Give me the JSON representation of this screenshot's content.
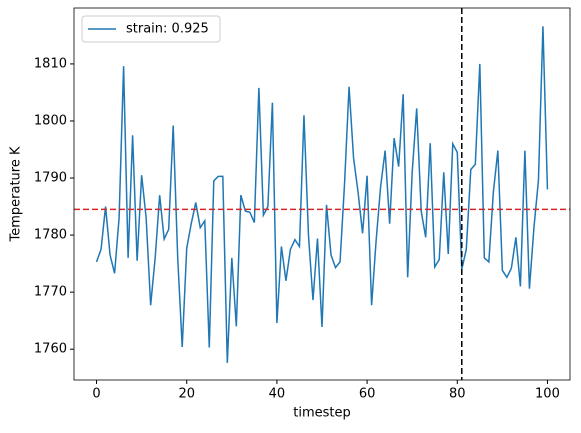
{
  "chart_data": {
    "type": "line",
    "x_label": "timestep",
    "y_label": "Temperature K",
    "x": [
      0,
      1,
      2,
      3,
      4,
      5,
      6,
      7,
      8,
      9,
      10,
      11,
      12,
      13,
      14,
      15,
      16,
      17,
      18,
      19,
      20,
      21,
      22,
      23,
      24,
      25,
      26,
      27,
      28,
      29,
      30,
      31,
      32,
      33,
      34,
      35,
      36,
      37,
      38,
      39,
      40,
      41,
      42,
      43,
      44,
      45,
      46,
      47,
      48,
      49,
      50,
      51,
      52,
      53,
      54,
      55,
      56,
      57,
      58,
      59,
      60,
      61,
      62,
      63,
      64,
      65,
      66,
      67,
      68,
      69,
      70,
      71,
      72,
      73,
      74,
      75,
      76,
      77,
      78,
      79,
      80,
      81,
      82,
      83,
      84,
      85,
      86,
      87,
      88,
      89,
      90,
      91,
      92,
      93,
      94,
      95,
      96,
      97,
      98,
      99,
      100
    ],
    "series": [
      {
        "name": "strain: 0.925",
        "color": "#1f77b4",
        "values": [
          1775.3,
          1777.5,
          1785,
          1776.5,
          1773.3,
          1783,
          1809.6,
          1776,
          1797.5,
          1775.5,
          1790.5,
          1783,
          1767.7,
          1776,
          1787,
          1779.3,
          1781,
          1799.2,
          1776,
          1760.4,
          1777.7,
          1782,
          1785.7,
          1781.3,
          1782.5,
          1760.3,
          1789.5,
          1790.3,
          1790.3,
          1757.6,
          1776,
          1764,
          1787,
          1784.2,
          1784,
          1782.2,
          1805.8,
          1783.5,
          1785,
          1803.2,
          1764.6,
          1778,
          1772,
          1777.5,
          1779.2,
          1778,
          1801,
          1780,
          1768.6,
          1779.4,
          1763.9,
          1785.3,
          1776.5,
          1774.3,
          1775.3,
          1789,
          1806,
          1793.5,
          1787.5,
          1780.3,
          1790.4,
          1767.7,
          1779,
          1788.5,
          1794.8,
          1782,
          1797,
          1792,
          1804.7,
          1772.6,
          1791,
          1802.2,
          1784.2,
          1779.6,
          1796.1,
          1774.4,
          1775.7,
          1791,
          1776.7,
          1796,
          1794.5,
          1774,
          1777.5,
          1791.5,
          1792.4,
          1810,
          1776,
          1775.3,
          1787.5,
          1794.8,
          1773.8,
          1772.6,
          1774.2,
          1779.6,
          1771,
          1794.8,
          1770.6,
          1781.3,
          1789.6,
          1816.6,
          1788
        ]
      }
    ],
    "hlines": [
      {
        "value": 1784.5,
        "color": "#d62728"
      }
    ],
    "vlines": [
      {
        "value": 81,
        "color": "#000000"
      }
    ],
    "xlim": [
      -5,
      105
    ],
    "ylim": [
      1754.6,
      1819.8
    ],
    "xticks": [
      0,
      20,
      40,
      60,
      80,
      100
    ],
    "yticks": [
      1760,
      1770,
      1780,
      1790,
      1800,
      1810
    ],
    "legend": "upper left"
  }
}
